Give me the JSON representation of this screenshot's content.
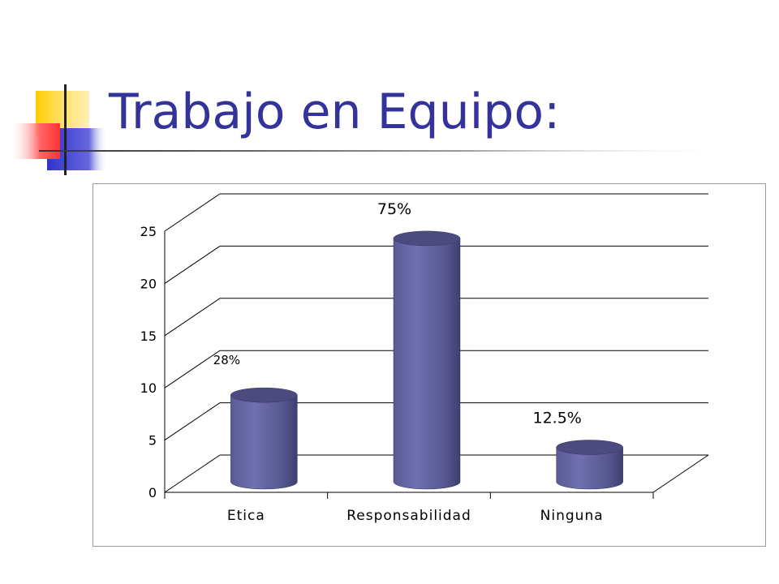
{
  "slide": {
    "title": "Trabajo en Equipo:"
  },
  "colors": {
    "title": "#333399",
    "bar_front": "#6666a8",
    "bar_top": "#4a4a80",
    "deco_yellow": "#ffcc00",
    "deco_blue": "#3333cc",
    "deco_red": "#ff4444"
  },
  "chart_data": {
    "type": "bar",
    "categories": [
      "Etica",
      "Responsabilidad",
      "Ninguna"
    ],
    "values": [
      9,
      24,
      4
    ],
    "data_labels": [
      "28%",
      "75%",
      "12.5%"
    ],
    "ylim": [
      0,
      25
    ],
    "yticks": [
      "0",
      "5",
      "10",
      "15",
      "20",
      "25"
    ],
    "grid": true,
    "legend": "none"
  }
}
